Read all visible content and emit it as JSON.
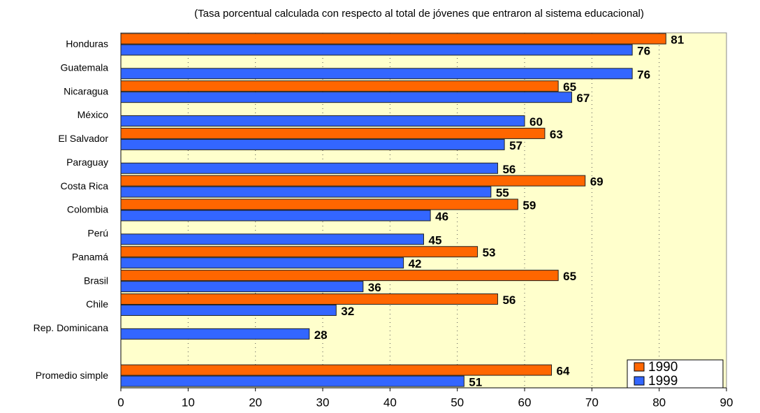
{
  "chart_data": {
    "type": "hbar",
    "title": "(Tasa porcentual calculada con respecto al total de jóvenes que entraron al sistema educacional)",
    "categories": [
      "Honduras",
      "Guatemala",
      "Nicaragua",
      "México",
      "El Salvador",
      "Paraguay",
      "Costa Rica",
      "Colombia",
      "Perú",
      "Panamá",
      "Brasil",
      "Chile",
      "Rep. Dominicana",
      null,
      "Promedio simple"
    ],
    "series": [
      {
        "name": "1990",
        "color": "#ff6600",
        "values": [
          81,
          null,
          65,
          null,
          63,
          null,
          69,
          59,
          null,
          53,
          65,
          56,
          null,
          null,
          64
        ]
      },
      {
        "name": "1999",
        "color": "#3366ff",
        "values": [
          76,
          76,
          67,
          60,
          57,
          56,
          55,
          46,
          45,
          42,
          36,
          32,
          28,
          null,
          51
        ]
      }
    ],
    "xlim": [
      0,
      90
    ],
    "xticks": [
      0,
      10,
      20,
      30,
      40,
      50,
      60,
      70,
      80,
      90
    ],
    "grid": true,
    "legend": "bottom-right"
  }
}
